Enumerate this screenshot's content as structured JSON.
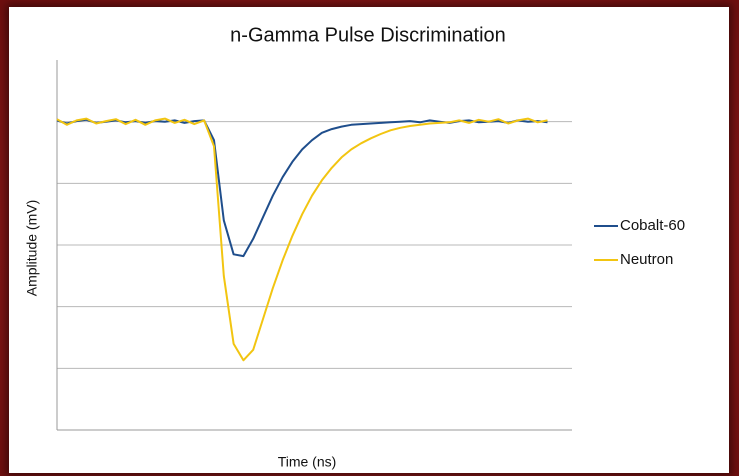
{
  "chart_data": {
    "type": "line",
    "title": "n-Gamma Pulse Discrimination",
    "x_label": "Time (ns)",
    "y_label": "Amplitude (mV)",
    "x": [
      0,
      2,
      4,
      6,
      8,
      10,
      12,
      14,
      16,
      18,
      20,
      22,
      24,
      26,
      28,
      30,
      32,
      34,
      36,
      38,
      40,
      42,
      44,
      46,
      48,
      50,
      52,
      54,
      56,
      58,
      60,
      62,
      64,
      66,
      68,
      70,
      72,
      74,
      76,
      78,
      80,
      82,
      84,
      86,
      88,
      90,
      92,
      94,
      96,
      98,
      100
    ],
    "xlim": [
      0,
      105
    ],
    "ylim": [
      -5,
      1
    ],
    "yticks": [
      -5,
      -4,
      -3,
      -2,
      -1,
      0
    ],
    "grid": true,
    "legend": "right",
    "series": [
      {
        "name": "Cobalt-60",
        "color": "#1f4e8c",
        "values": [
          0.02,
          -0.03,
          0.01,
          0.03,
          -0.02,
          0.0,
          0.02,
          -0.01,
          0.01,
          -0.02,
          0.01,
          0.0,
          0.02,
          -0.02,
          0.01,
          0.02,
          -0.3,
          -1.6,
          -2.15,
          -2.18,
          -1.9,
          -1.55,
          -1.2,
          -0.9,
          -0.65,
          -0.45,
          -0.3,
          -0.18,
          -0.12,
          -0.08,
          -0.05,
          -0.04,
          -0.03,
          -0.02,
          -0.01,
          0.0,
          0.01,
          -0.01,
          0.02,
          0.0,
          -0.02,
          0.01,
          0.02,
          -0.01,
          0.0,
          0.01,
          -0.02,
          0.02,
          0.0,
          0.01,
          -0.01
        ]
      },
      {
        "name": "Neutron",
        "color": "#f2c511",
        "values": [
          0.04,
          -0.05,
          0.02,
          0.05,
          -0.03,
          0.01,
          0.04,
          -0.04,
          0.03,
          -0.05,
          0.02,
          0.05,
          -0.02,
          0.03,
          -0.04,
          0.02,
          -0.4,
          -2.5,
          -3.6,
          -3.87,
          -3.7,
          -3.2,
          -2.7,
          -2.25,
          -1.85,
          -1.5,
          -1.2,
          -0.95,
          -0.75,
          -0.58,
          -0.45,
          -0.35,
          -0.27,
          -0.2,
          -0.14,
          -0.1,
          -0.07,
          -0.05,
          -0.03,
          -0.02,
          -0.01,
          0.02,
          -0.02,
          0.03,
          0.0,
          0.04,
          -0.03,
          0.02,
          0.05,
          -0.01,
          0.02
        ]
      }
    ]
  }
}
